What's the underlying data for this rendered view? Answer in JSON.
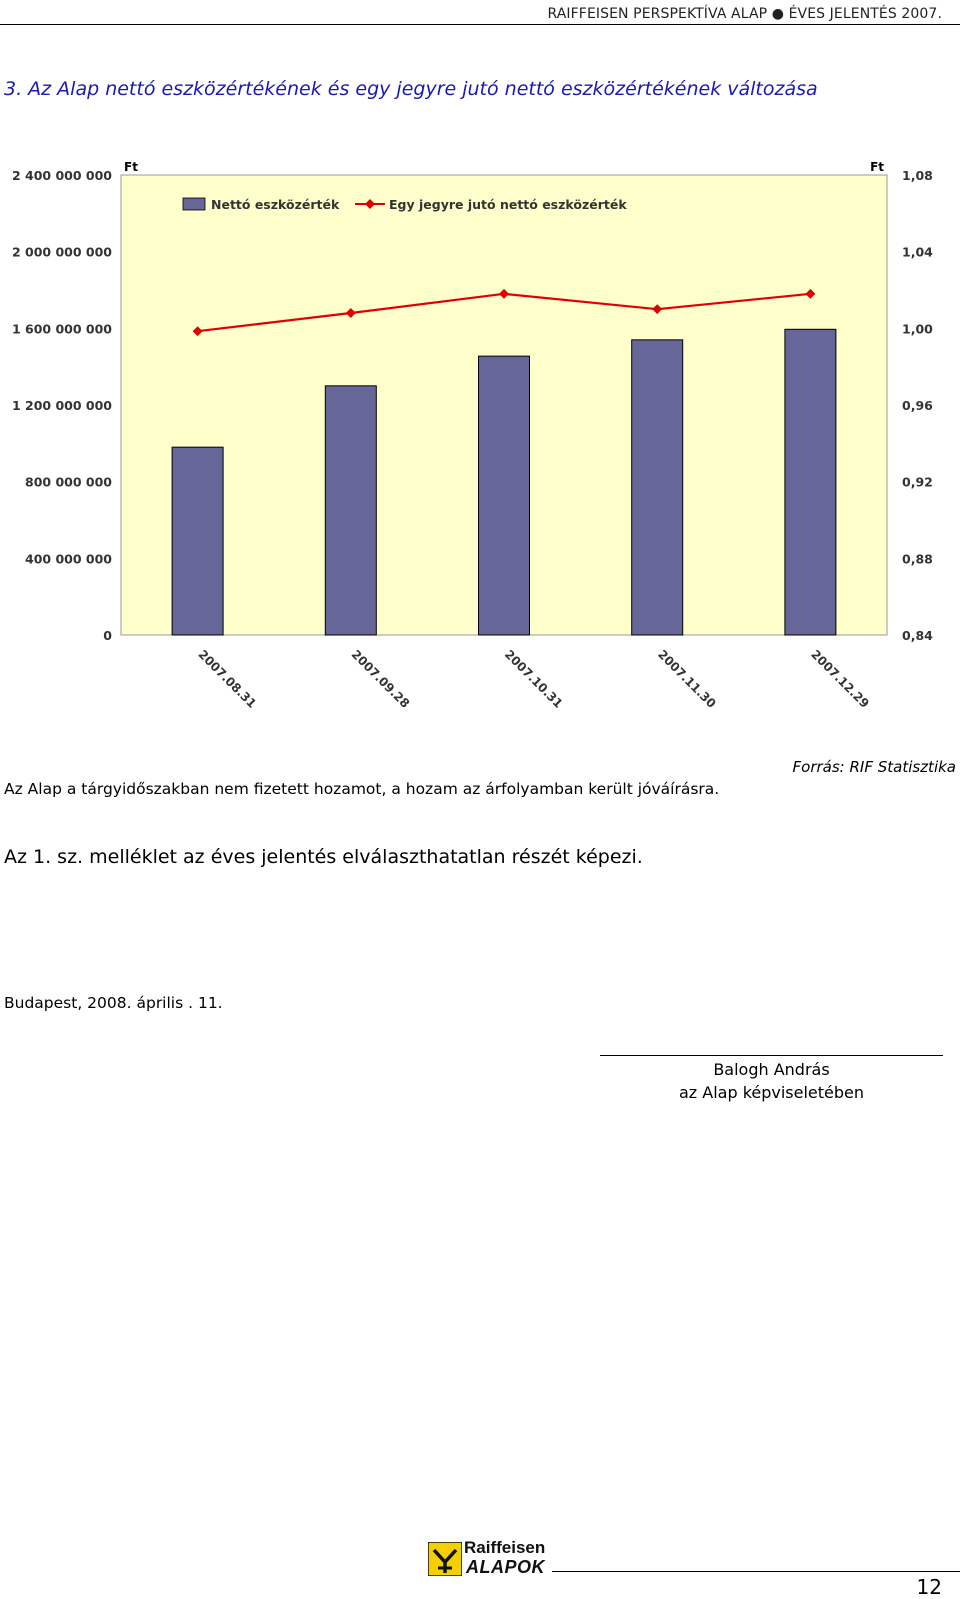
{
  "header": {
    "text": "RAIFFEISEN PERSPEKTÍVA ALAP ● ÉVES JELENTÉS 2007."
  },
  "section_title": "3. Az Alap nettó eszközértékének és egy jegyre jutó nettó eszközértékének változása",
  "chart_data": {
    "type": "bar",
    "categories": [
      "2007.08.31",
      "2007.09.28",
      "2007.10.31",
      "2007.11.30",
      "2007.12.29"
    ],
    "series": [
      {
        "name": "Nettó eszközérték",
        "type": "bar",
        "axis": "left",
        "color": "#666699",
        "values": [
          980000000,
          1300000000,
          1455000000,
          1540000000,
          1595000000
        ]
      },
      {
        "name": "Egy jegyre jutó nettó eszközérték",
        "type": "line",
        "axis": "right",
        "color": "#e00000",
        "values": [
          0.9985,
          1.008,
          1.018,
          1.01,
          1.018
        ]
      }
    ],
    "y_left": {
      "unit": "Ft",
      "range": [
        0,
        2400000000
      ],
      "tick_labels": [
        "0",
        "400 000 000",
        "800 000 000",
        "1 200 000 000",
        "1 600 000 000",
        "2 000 000 000",
        "2 400 000 000"
      ]
    },
    "y_right": {
      "unit": "Ft",
      "range": [
        0.84,
        1.08
      ],
      "tick_labels": [
        "0,84",
        "0,88",
        "0,92",
        "0,96",
        "1,00",
        "1,04",
        "1,08"
      ]
    },
    "plot_background": "#ffffcc",
    "grid": false,
    "legend_position": "top-left"
  },
  "note": "Az Alap a tárgyidőszakban nem fizetett hozamot, a hozam az árfolyamban került jóváírásra.",
  "source": "Forrás: RIF Statisztika",
  "annex": "Az 1. sz. melléklet az éves jelentés elválaszthatatlan részét képezi.",
  "place_date": "Budapest, 2008. április . 11.",
  "signature": {
    "name": "Balogh András",
    "role": "az Alap képviseletében"
  },
  "footer": {
    "logo_top": "Raiffeisen",
    "logo_bottom": "ALAPOK",
    "page_number": "12"
  }
}
